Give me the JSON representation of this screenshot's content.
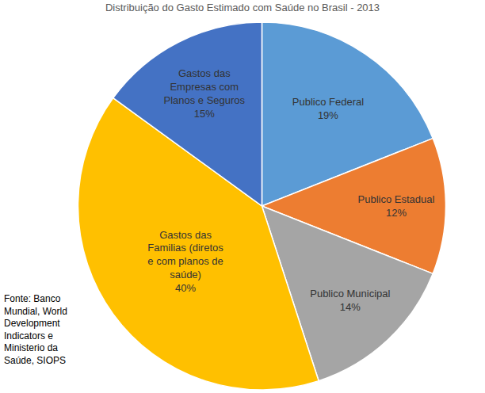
{
  "chart_data": {
    "type": "pie",
    "title": "Distribuição do Gasto Estimado com Saúde no Brasil - 2013",
    "categories": [
      "Publico Federal",
      "Publico Estadual",
      "Publico Municipal",
      "Gastos das Familias (diretos e com planos de saúde)",
      "Gastos das Empresas com Planos e Seguros"
    ],
    "values": [
      19,
      12,
      14,
      40,
      15
    ],
    "value_labels": [
      "19%",
      "12%",
      "14%",
      "40%",
      "15%"
    ],
    "colors": [
      "#5b9bd5",
      "#ed7d31",
      "#a5a5a5",
      "#ffc000",
      "#4472c4"
    ],
    "data_labels": true,
    "annotations": [
      {
        "text": "Fonte: Banco Mundial, World Development Indicators e Ministerio da Saúde, SIOPS"
      }
    ]
  }
}
